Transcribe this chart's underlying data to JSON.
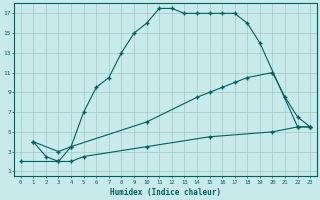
{
  "xlabel": "Humidex (Indice chaleur)",
  "bg_color": "#c8eaea",
  "line_color": "#006060",
  "grid_color": "#b8d8d8",
  "xlim": [
    -0.5,
    23.5
  ],
  "ylim": [
    0.5,
    18
  ],
  "xticks": [
    0,
    1,
    2,
    3,
    4,
    5,
    6,
    7,
    8,
    9,
    10,
    11,
    12,
    13,
    14,
    15,
    16,
    17,
    18,
    19,
    20,
    21,
    22,
    23
  ],
  "yticks": [
    1,
    3,
    5,
    7,
    9,
    11,
    13,
    15,
    17
  ],
  "line1_x": [
    1,
    2,
    3,
    4,
    5,
    6,
    7,
    8,
    9,
    10,
    11,
    12,
    13,
    14,
    15,
    16,
    17,
    18,
    19,
    22,
    23
  ],
  "line1_y": [
    4,
    2.5,
    2,
    3.5,
    7,
    9.5,
    10.5,
    13,
    15,
    16,
    17.5,
    17.5,
    17,
    17,
    17,
    17,
    17,
    16,
    14,
    5.5,
    5.5
  ],
  "line2_x": [
    1,
    3,
    4,
    10,
    14,
    15,
    16,
    17,
    18,
    20,
    21,
    22,
    23
  ],
  "line2_y": [
    4,
    3,
    3.5,
    6,
    8.5,
    9,
    9.5,
    10,
    10.5,
    11,
    8.5,
    6.5,
    5.5
  ],
  "line3_x": [
    0,
    3,
    4,
    5,
    10,
    15,
    20,
    22,
    23
  ],
  "line3_y": [
    2,
    2,
    2,
    2.5,
    3.5,
    4.5,
    5,
    5.5,
    5.5
  ]
}
